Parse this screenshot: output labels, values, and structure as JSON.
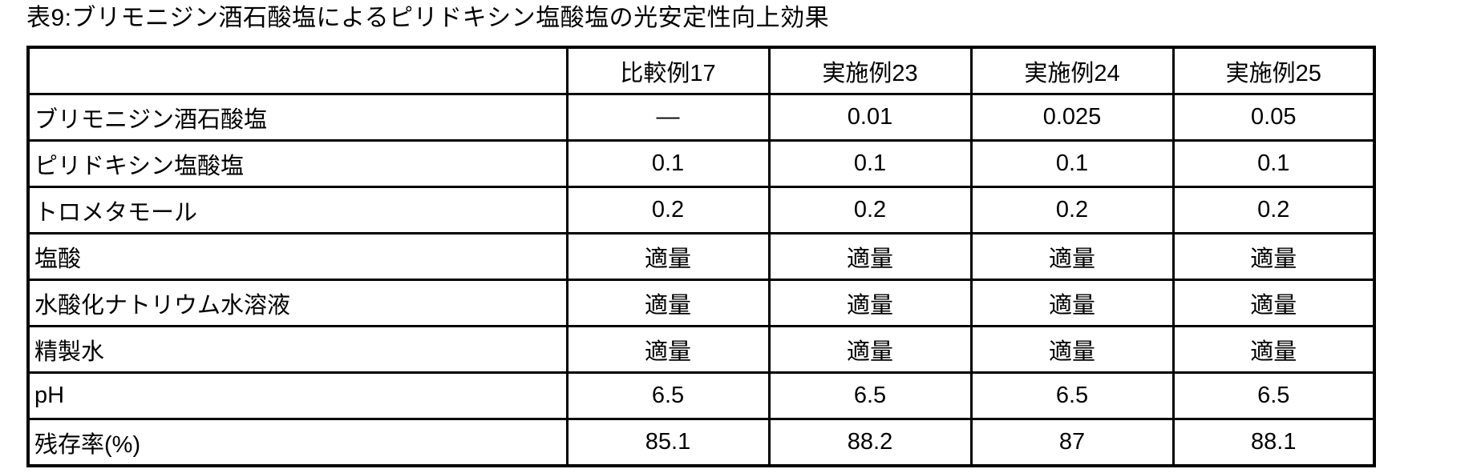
{
  "title": "表9:ブリモニジン酒石酸塩によるピリドキシン塩酸塩の光安定性向上効果",
  "table": {
    "columns": [
      "",
      "比較例17",
      "実施例23",
      "実施例24",
      "実施例25"
    ],
    "rows": [
      {
        "label": "ブリモニジン酒石酸塩",
        "values": [
          "—",
          "0.01",
          "0.025",
          "0.05"
        ]
      },
      {
        "label": "ピリドキシン塩酸塩",
        "values": [
          "0.1",
          "0.1",
          "0.1",
          "0.1"
        ]
      },
      {
        "label": "トロメタモール",
        "values": [
          "0.2",
          "0.2",
          "0.2",
          "0.2"
        ]
      },
      {
        "label": "塩酸",
        "values": [
          "適量",
          "適量",
          "適量",
          "適量"
        ]
      },
      {
        "label": "水酸化ナトリウム水溶液",
        "values": [
          "適量",
          "適量",
          "適量",
          "適量"
        ]
      },
      {
        "label": "精製水",
        "values": [
          "適量",
          "適量",
          "適量",
          "適量"
        ]
      },
      {
        "label": "pH",
        "values": [
          "6.5",
          "6.5",
          "6.5",
          "6.5"
        ]
      },
      {
        "label": "残存率(%)",
        "values": [
          "85.1",
          "88.2",
          "87",
          "88.1"
        ]
      }
    ]
  }
}
